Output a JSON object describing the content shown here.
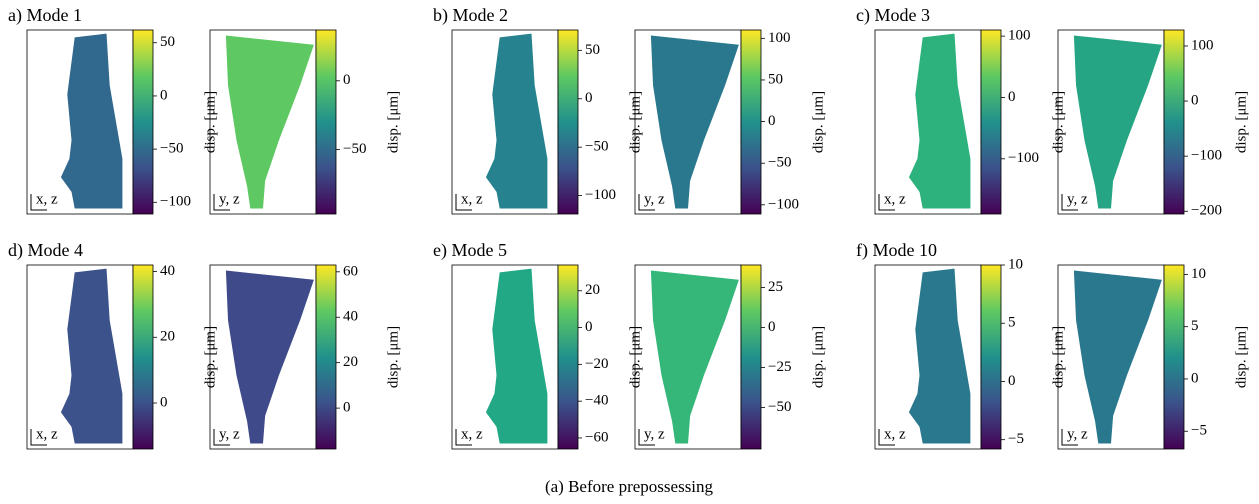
{
  "caption": "(a) Before prepossessing",
  "panels": [
    {
      "title": "a) Mode 1",
      "views": [
        {
          "axes": "x, z",
          "cbar_label": "disp. [μm]",
          "color": "#31688e",
          "clim": [
            -111,
            62
          ],
          "cticks": [
            50,
            0,
            {
              "value": -50,
              "label": "−50"
            },
            {
              "value": -100,
              "label": "−100"
            }
          ]
        },
        {
          "axes": "y, z",
          "cbar_label": "disp. [μm]",
          "color": "#5ec962",
          "clim": [
            -97,
            37
          ],
          "cticks": [
            0,
            {
              "value": -50,
              "label": "−50"
            }
          ]
        }
      ]
    },
    {
      "title": "b) Mode 2",
      "views": [
        {
          "axes": "x, z",
          "cbar_label": "disp. [μm]",
          "color": "#26828e",
          "clim": [
            -119,
            71
          ],
          "cticks": [
            50,
            0,
            {
              "value": -50,
              "label": "−50"
            },
            {
              "value": -100,
              "label": "−100"
            }
          ]
        },
        {
          "axes": "y, z",
          "cbar_label": "disp. [μm]",
          "color": "#2a788e",
          "clim": [
            -111,
            110
          ],
          "cticks": [
            100,
            50,
            0,
            {
              "value": -50,
              "label": "−50"
            },
            {
              "value": -100,
              "label": "−100"
            }
          ]
        }
      ]
    },
    {
      "title": "c) Mode 3",
      "views": [
        {
          "axes": "x, z",
          "cbar_label": "disp. [μm]",
          "color": "#2db27d",
          "clim": [
            -190,
            110
          ],
          "cticks": [
            100,
            0,
            {
              "value": -100,
              "label": "−100"
            }
          ]
        },
        {
          "axes": "y, z",
          "cbar_label": "disp. [μm]",
          "color": "#25a584",
          "clim": [
            -205,
            129
          ],
          "cticks": [
            100,
            0,
            {
              "value": -100,
              "label": "−100"
            },
            {
              "value": -200,
              "label": "−200"
            }
          ]
        }
      ]
    },
    {
      "title": "d) Mode 4",
      "views": [
        {
          "axes": "x, z",
          "cbar_label": "disp. [μm]",
          "color": "#3b528b",
          "clim": [
            -14,
            42
          ],
          "cticks": [
            40,
            20,
            0
          ]
        },
        {
          "axes": "y, z",
          "cbar_label": "disp. [μm]",
          "color": "#3e4a89",
          "clim": [
            -18,
            63
          ],
          "cticks": [
            60,
            40,
            20,
            0
          ]
        }
      ]
    },
    {
      "title": "e) Mode 5",
      "views": [
        {
          "axes": "x, z",
          "cbar_label": "disp. [μm]",
          "color": "#22a884",
          "clim": [
            -66,
            34
          ],
          "cticks": [
            20,
            0,
            {
              "value": -20,
              "label": "−20"
            },
            {
              "value": -40,
              "label": "−40"
            },
            {
              "value": -60,
              "label": "−60"
            }
          ]
        },
        {
          "axes": "y, z",
          "cbar_label": "disp. [μm]",
          "color": "#35b779",
          "clim": [
            -76,
            39
          ],
          "cticks": [
            25,
            0,
            {
              "value": -25,
              "label": "−25"
            },
            {
              "value": -50,
              "label": "−50"
            }
          ]
        }
      ]
    },
    {
      "title": "f) Mode 10",
      "views": [
        {
          "axes": "x, z",
          "cbar_label": "disp. [μm]",
          "color": "#2a788e",
          "clim": [
            -5.8,
            10
          ],
          "cticks": [
            10,
            5,
            0,
            {
              "value": -5,
              "label": "−5"
            }
          ]
        },
        {
          "axes": "y, z",
          "cbar_label": "disp. [μm]",
          "color": "#2a788e",
          "clim": [
            -6.7,
            10.9
          ],
          "cticks": [
            10,
            5,
            0,
            {
              "value": -5,
              "label": "−5"
            }
          ]
        }
      ]
    }
  ]
}
